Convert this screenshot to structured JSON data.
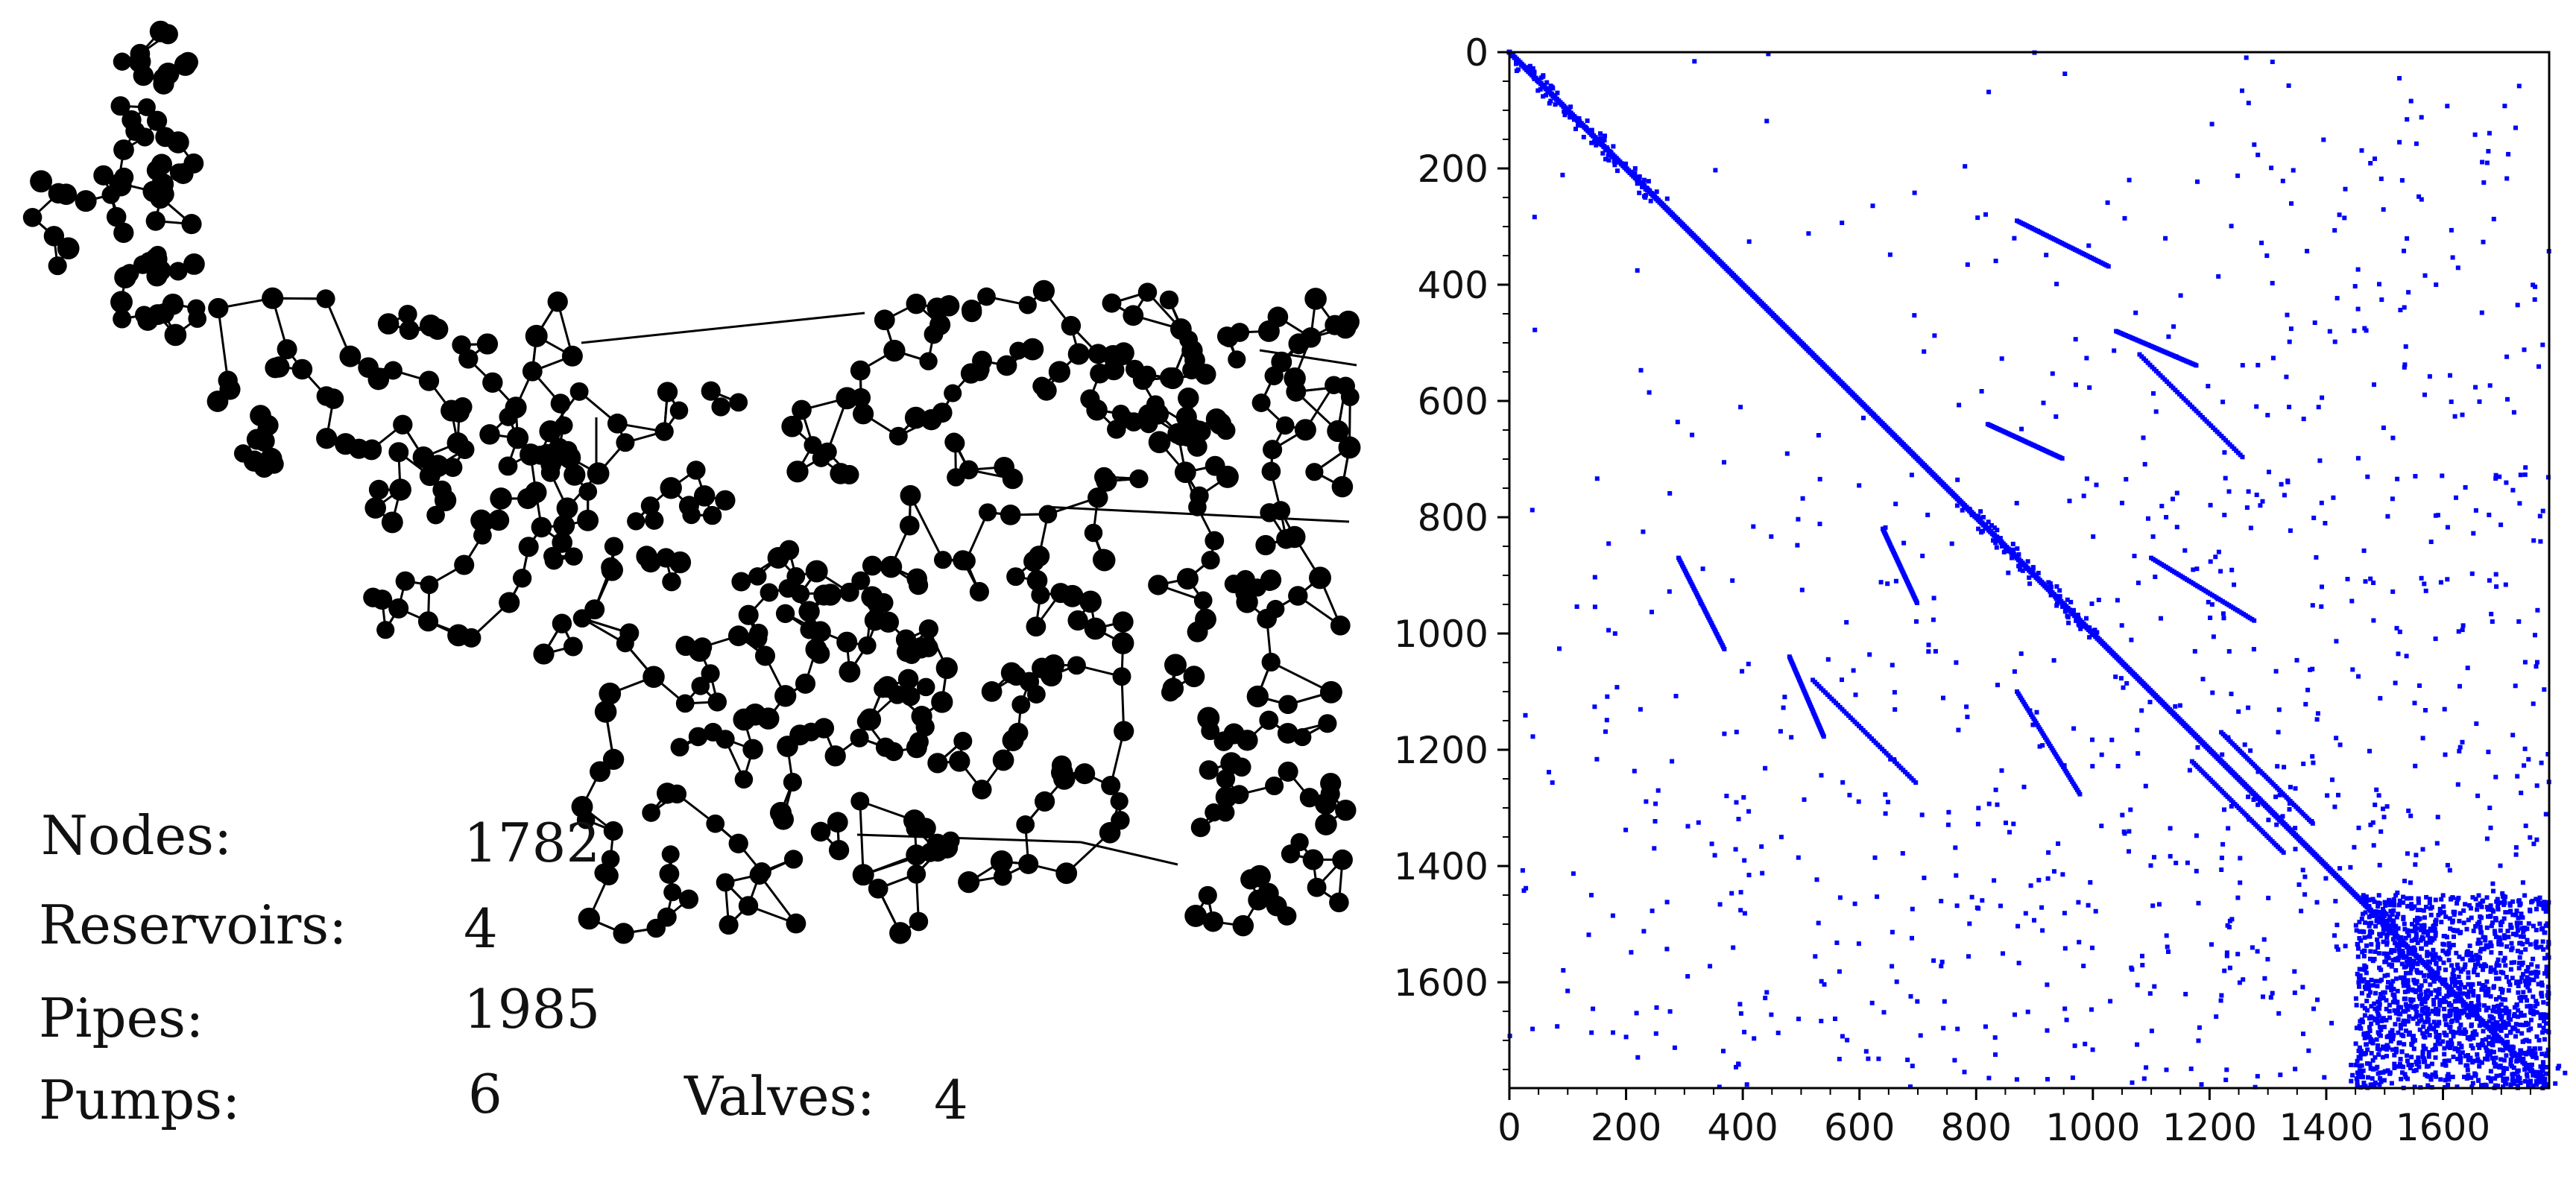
{
  "network_stats": {
    "nodes_label": "Nodes:",
    "nodes_value": "1782",
    "reservoirs_label": "Reservoirs:",
    "reservoirs_value": "4",
    "pipes_label": "Pipes:",
    "pipes_value": "1985",
    "pumps_label": "Pumps:",
    "pumps_value": "6",
    "valves_label": "Valves:",
    "valves_value": "4"
  },
  "matrix_plot": {
    "xlim": [
      0,
      1782
    ],
    "ylim": [
      0,
      1782
    ],
    "x_tick_labels": [
      "0",
      "200",
      "400",
      "600",
      "800",
      "1000",
      "1200",
      "1400",
      "1600"
    ],
    "y_tick_labels": [
      "0",
      "200",
      "400",
      "600",
      "800",
      "1000",
      "1200",
      "1400",
      "1600"
    ],
    "marker_color": "#0000ff",
    "y_axis_inverted": true
  }
}
